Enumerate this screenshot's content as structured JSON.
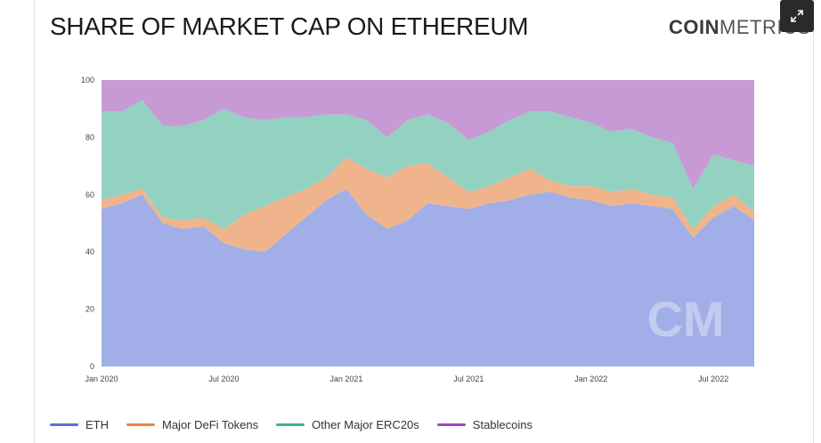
{
  "title": "SHARE OF MARKET CAP ON ETHEREUM",
  "brand": {
    "bold": "COIN",
    "light": "METRICS"
  },
  "watermark": "CM",
  "colors": {
    "eth": "#a1aee8",
    "defi": "#f0b48c",
    "erc20": "#93d1c1",
    "stable": "#c79ad6",
    "eth_line": "#5b6fd6",
    "defi_line": "#e8854a",
    "erc20_line": "#3ab39a",
    "stable_line": "#a546c2"
  },
  "chart_data": {
    "type": "area",
    "title": "SHARE OF MARKET CAP ON ETHEREUM",
    "xlabel": "",
    "ylabel": "",
    "ylim": [
      0,
      100
    ],
    "yticks": [
      0,
      20,
      40,
      60,
      80,
      100
    ],
    "xticks": [
      "Jan 2020",
      "Jul 2020",
      "Jan 2021",
      "Jul 2021",
      "Jan 2022",
      "Jul 2022"
    ],
    "x": [
      "Jan 2020",
      "Feb 2020",
      "Mar 2020",
      "Apr 2020",
      "May 2020",
      "Jun 2020",
      "Jul 2020",
      "Aug 2020",
      "Sep 2020",
      "Oct 2020",
      "Nov 2020",
      "Dec 2020",
      "Jan 2021",
      "Feb 2021",
      "Mar 2021",
      "Apr 2021",
      "May 2021",
      "Jun 2021",
      "Jul 2021",
      "Aug 2021",
      "Sep 2021",
      "Oct 2021",
      "Nov 2021",
      "Dec 2021",
      "Jan 2022",
      "Feb 2022",
      "Mar 2022",
      "Apr 2022",
      "May 2022",
      "Jun 2022",
      "Jul 2022",
      "Aug 2022",
      "Sep 2022"
    ],
    "stacked": true,
    "series": [
      {
        "name": "ETH",
        "values": [
          55,
          57,
          60,
          50,
          48,
          49,
          43,
          41,
          40,
          46,
          52,
          58,
          62,
          53,
          48,
          51,
          57,
          56,
          55,
          57,
          58,
          60,
          61,
          59,
          58,
          56,
          57,
          56,
          55,
          45,
          52,
          56,
          51
        ]
      },
      {
        "name": "Major DeFi Tokens",
        "values": [
          3,
          3,
          2,
          2,
          3,
          3,
          5,
          12,
          16,
          13,
          10,
          8,
          11,
          16,
          18,
          19,
          14,
          10,
          6,
          6,
          8,
          9,
          4,
          4,
          5,
          5,
          5,
          4,
          4,
          3,
          4,
          4,
          3
        ]
      },
      {
        "name": "Other Major ERC20s",
        "values": [
          31,
          29,
          31,
          32,
          33,
          34,
          42,
          34,
          30,
          28,
          25,
          22,
          15,
          17,
          14,
          16,
          17,
          19,
          18,
          19,
          20,
          20,
          24,
          24,
          22,
          21,
          21,
          20,
          19,
          14,
          18,
          12,
          16
        ]
      },
      {
        "name": "Stablecoins",
        "values": [
          11,
          11,
          7,
          16,
          16,
          14,
          10,
          13,
          14,
          13,
          13,
          12,
          12,
          14,
          20,
          14,
          12,
          15,
          21,
          18,
          14,
          11,
          11,
          13,
          15,
          18,
          17,
          20,
          22,
          38,
          26,
          28,
          30
        ]
      }
    ],
    "legend_position": "bottom-left",
    "grid": false
  }
}
